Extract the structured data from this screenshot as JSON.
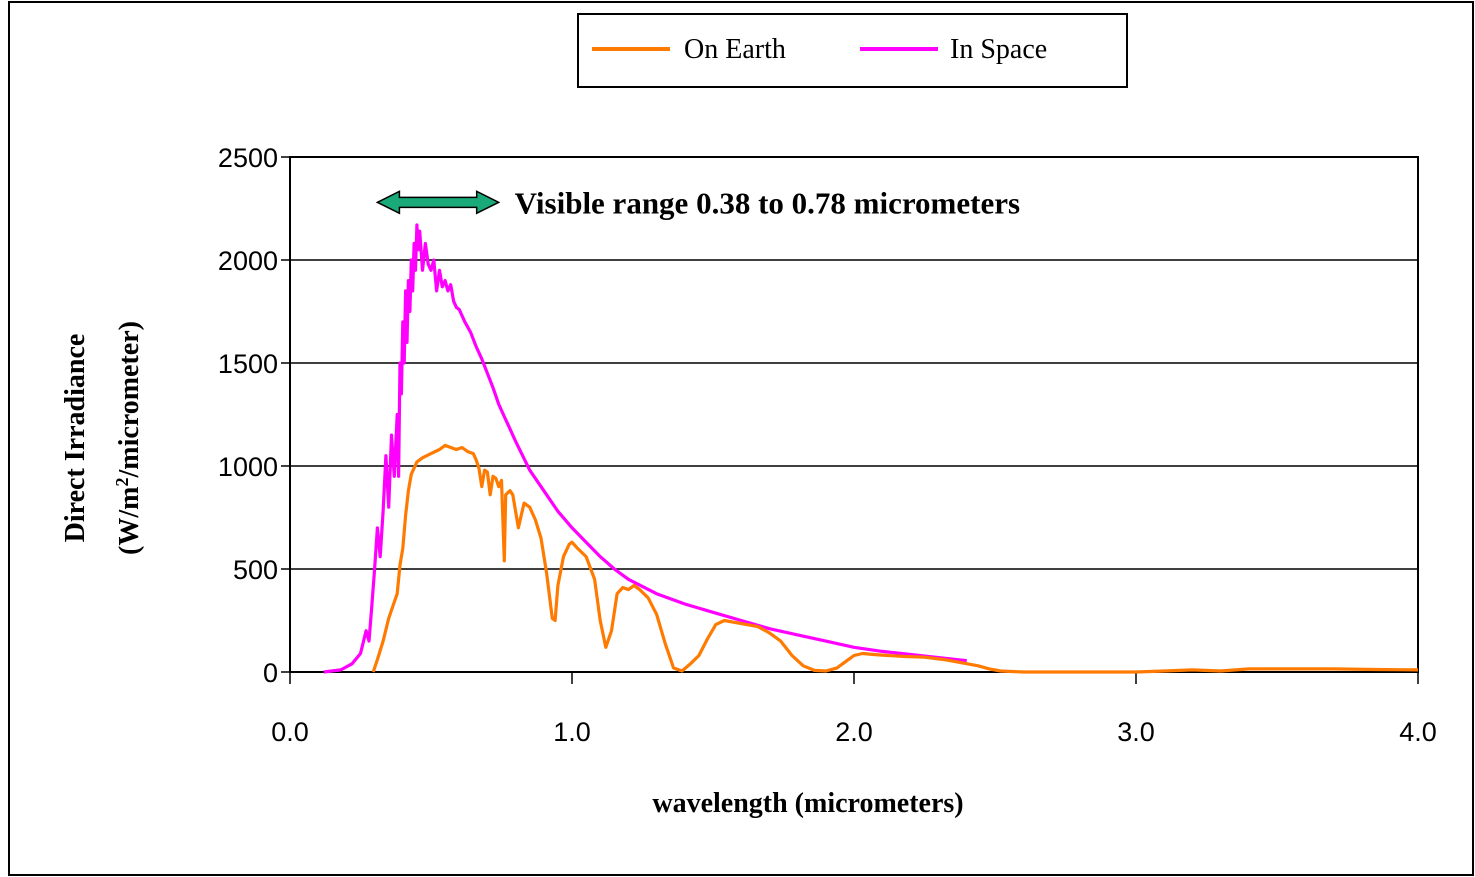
{
  "chart_data": {
    "type": "line",
    "title": "",
    "xlabel": "wavelength (micrometers)",
    "ylabel_line1": "Direct Irradiance",
    "ylabel_line2_prefix": "(W/m",
    "ylabel_line2_sup": "2",
    "ylabel_line2_suffix": "/micrometer)",
    "xlim": [
      0,
      4
    ],
    "ylim": [
      0,
      2500
    ],
    "x_ticks": [
      0,
      1,
      2,
      3,
      4
    ],
    "x_tick_labels": [
      "0.0",
      "1.0",
      "2.0",
      "3.0",
      "4.0"
    ],
    "y_ticks": [
      0,
      500,
      1000,
      1500,
      2000,
      2500
    ],
    "y_tick_labels": [
      "0",
      "500",
      "1000",
      "1500",
      "2000",
      "2500"
    ],
    "grid": "horizontal",
    "legend_position": "top-center",
    "annotation": {
      "text": "Visible range 0.38 to 0.78 micrometers",
      "x_range": [
        0.31,
        0.74
      ],
      "y": 2280,
      "color": "#1aaa7a"
    },
    "series": [
      {
        "name": "On Earth",
        "color": "#ff7a00",
        "points": [
          [
            0.295,
            0
          ],
          [
            0.31,
            60
          ],
          [
            0.33,
            150
          ],
          [
            0.35,
            260
          ],
          [
            0.37,
            340
          ],
          [
            0.38,
            380
          ],
          [
            0.39,
            520
          ],
          [
            0.4,
            600
          ],
          [
            0.41,
            760
          ],
          [
            0.42,
            880
          ],
          [
            0.43,
            960
          ],
          [
            0.45,
            1020
          ],
          [
            0.47,
            1040
          ],
          [
            0.5,
            1060
          ],
          [
            0.53,
            1080
          ],
          [
            0.55,
            1100
          ],
          [
            0.57,
            1090
          ],
          [
            0.59,
            1080
          ],
          [
            0.61,
            1090
          ],
          [
            0.63,
            1070
          ],
          [
            0.65,
            1060
          ],
          [
            0.66,
            1030
          ],
          [
            0.67,
            990
          ],
          [
            0.68,
            900
          ],
          [
            0.69,
            980
          ],
          [
            0.7,
            970
          ],
          [
            0.71,
            860
          ],
          [
            0.72,
            950
          ],
          [
            0.73,
            940
          ],
          [
            0.74,
            900
          ],
          [
            0.75,
            930
          ],
          [
            0.76,
            540
          ],
          [
            0.765,
            860
          ],
          [
            0.78,
            880
          ],
          [
            0.79,
            860
          ],
          [
            0.8,
            780
          ],
          [
            0.81,
            700
          ],
          [
            0.82,
            760
          ],
          [
            0.83,
            820
          ],
          [
            0.85,
            800
          ],
          [
            0.87,
            740
          ],
          [
            0.89,
            650
          ],
          [
            0.91,
            480
          ],
          [
            0.93,
            260
          ],
          [
            0.94,
            250
          ],
          [
            0.95,
            420
          ],
          [
            0.97,
            560
          ],
          [
            0.99,
            620
          ],
          [
            1.0,
            630
          ],
          [
            1.02,
            600
          ],
          [
            1.05,
            560
          ],
          [
            1.08,
            450
          ],
          [
            1.1,
            250
          ],
          [
            1.12,
            120
          ],
          [
            1.14,
            200
          ],
          [
            1.16,
            380
          ],
          [
            1.18,
            410
          ],
          [
            1.2,
            400
          ],
          [
            1.22,
            420
          ],
          [
            1.24,
            400
          ],
          [
            1.27,
            360
          ],
          [
            1.3,
            280
          ],
          [
            1.33,
            140
          ],
          [
            1.36,
            20
          ],
          [
            1.39,
            5
          ],
          [
            1.42,
            40
          ],
          [
            1.45,
            80
          ],
          [
            1.48,
            160
          ],
          [
            1.51,
            230
          ],
          [
            1.54,
            250
          ],
          [
            1.58,
            240
          ],
          [
            1.62,
            230
          ],
          [
            1.66,
            220
          ],
          [
            1.7,
            190
          ],
          [
            1.74,
            150
          ],
          [
            1.78,
            80
          ],
          [
            1.82,
            30
          ],
          [
            1.86,
            8
          ],
          [
            1.9,
            5
          ],
          [
            1.94,
            20
          ],
          [
            1.97,
            50
          ],
          [
            2.0,
            80
          ],
          [
            2.03,
            90
          ],
          [
            2.07,
            85
          ],
          [
            2.12,
            80
          ],
          [
            2.18,
            75
          ],
          [
            2.25,
            72
          ],
          [
            2.32,
            60
          ],
          [
            2.38,
            45
          ],
          [
            2.44,
            30
          ],
          [
            2.48,
            15
          ],
          [
            2.52,
            5
          ],
          [
            2.6,
            0
          ],
          [
            2.8,
            0
          ],
          [
            3.0,
            0
          ],
          [
            3.1,
            5
          ],
          [
            3.2,
            10
          ],
          [
            3.3,
            5
          ],
          [
            3.4,
            15
          ],
          [
            3.55,
            15
          ],
          [
            3.7,
            15
          ],
          [
            3.85,
            12
          ],
          [
            4.0,
            10
          ]
        ]
      },
      {
        "name": "In Space",
        "color": "#ff00ff",
        "points": [
          [
            0.12,
            0
          ],
          [
            0.18,
            10
          ],
          [
            0.22,
            40
          ],
          [
            0.25,
            90
          ],
          [
            0.27,
            200
          ],
          [
            0.28,
            150
          ],
          [
            0.29,
            320
          ],
          [
            0.3,
            500
          ],
          [
            0.31,
            700
          ],
          [
            0.32,
            560
          ],
          [
            0.33,
            780
          ],
          [
            0.34,
            1050
          ],
          [
            0.35,
            800
          ],
          [
            0.36,
            1150
          ],
          [
            0.37,
            950
          ],
          [
            0.38,
            1250
          ],
          [
            0.385,
            950
          ],
          [
            0.39,
            1500
          ],
          [
            0.395,
            1350
          ],
          [
            0.4,
            1700
          ],
          [
            0.405,
            1500
          ],
          [
            0.41,
            1850
          ],
          [
            0.415,
            1600
          ],
          [
            0.42,
            1900
          ],
          [
            0.425,
            1750
          ],
          [
            0.43,
            2000
          ],
          [
            0.435,
            1850
          ],
          [
            0.44,
            2080
          ],
          [
            0.445,
            1950
          ],
          [
            0.45,
            2170
          ],
          [
            0.455,
            2050
          ],
          [
            0.46,
            2140
          ],
          [
            0.47,
            1950
          ],
          [
            0.48,
            2080
          ],
          [
            0.49,
            1980
          ],
          [
            0.5,
            1950
          ],
          [
            0.51,
            2000
          ],
          [
            0.52,
            1850
          ],
          [
            0.53,
            1950
          ],
          [
            0.54,
            1870
          ],
          [
            0.55,
            1900
          ],
          [
            0.56,
            1850
          ],
          [
            0.57,
            1880
          ],
          [
            0.58,
            1800
          ],
          [
            0.59,
            1770
          ],
          [
            0.6,
            1760
          ],
          [
            0.62,
            1700
          ],
          [
            0.64,
            1650
          ],
          [
            0.66,
            1580
          ],
          [
            0.68,
            1520
          ],
          [
            0.7,
            1450
          ],
          [
            0.72,
            1380
          ],
          [
            0.74,
            1300
          ],
          [
            0.76,
            1240
          ],
          [
            0.78,
            1180
          ],
          [
            0.8,
            1120
          ],
          [
            0.85,
            980
          ],
          [
            0.9,
            880
          ],
          [
            0.95,
            780
          ],
          [
            1.0,
            700
          ],
          [
            1.05,
            630
          ],
          [
            1.1,
            560
          ],
          [
            1.15,
            500
          ],
          [
            1.2,
            450
          ],
          [
            1.3,
            380
          ],
          [
            1.4,
            330
          ],
          [
            1.5,
            290
          ],
          [
            1.6,
            250
          ],
          [
            1.7,
            210
          ],
          [
            1.8,
            180
          ],
          [
            1.9,
            150
          ],
          [
            2.0,
            120
          ],
          [
            2.1,
            100
          ],
          [
            2.2,
            85
          ],
          [
            2.3,
            70
          ],
          [
            2.4,
            55
          ]
        ]
      }
    ]
  }
}
